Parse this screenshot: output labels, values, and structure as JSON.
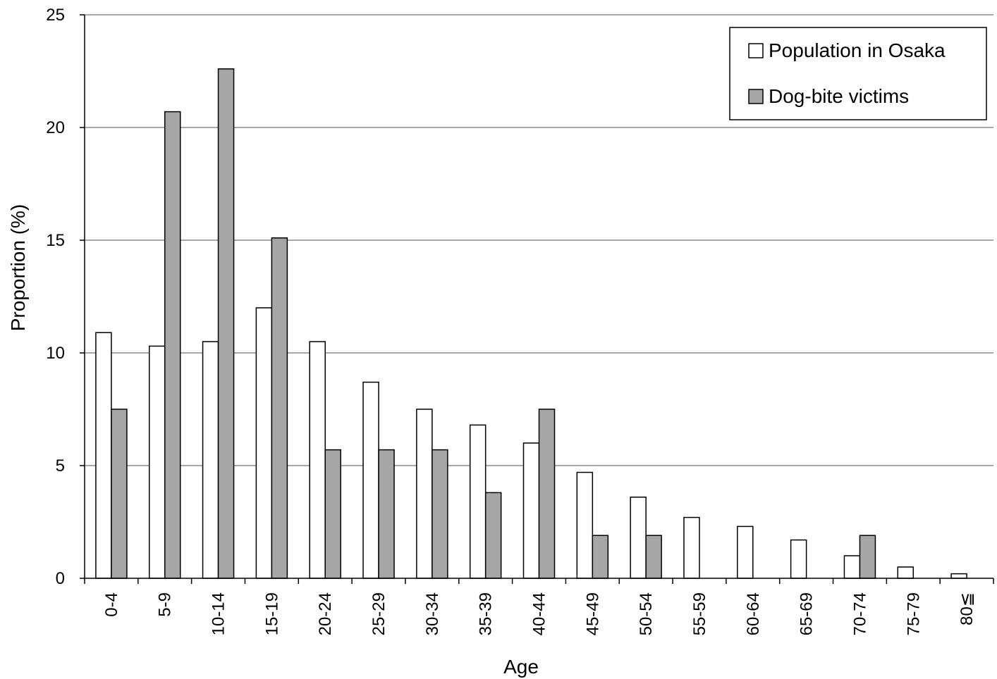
{
  "chart_data": {
    "type": "bar",
    "title": "",
    "xlabel": "Age",
    "ylabel": "Proportion (%)",
    "ylim": [
      0,
      25
    ],
    "yticks": [
      0,
      5,
      10,
      15,
      20,
      25
    ],
    "grid": "horizontal",
    "legend_position": "top-right",
    "categories": [
      "0-4",
      "5-9",
      "10-14",
      "15-19",
      "20-24",
      "25-29",
      "30-34",
      "35-39",
      "40-44",
      "45-49",
      "50-54",
      "55-59",
      "60-64",
      "65-69",
      "70-74",
      "75-79",
      "80≦"
    ],
    "series": [
      {
        "name": "Population in Osaka",
        "color": "#ffffff",
        "values": [
          10.9,
          10.3,
          10.5,
          12.0,
          10.5,
          8.7,
          7.5,
          6.8,
          6.0,
          4.7,
          3.6,
          2.7,
          2.3,
          1.7,
          1.0,
          0.5,
          0.2
        ]
      },
      {
        "name": "Dog-bite victims",
        "color": "#a6a6a6",
        "values": [
          7.5,
          20.7,
          22.6,
          15.1,
          5.7,
          5.7,
          5.7,
          3.8,
          7.5,
          1.9,
          1.9,
          0,
          0,
          0,
          1.9,
          0,
          0
        ]
      }
    ]
  }
}
